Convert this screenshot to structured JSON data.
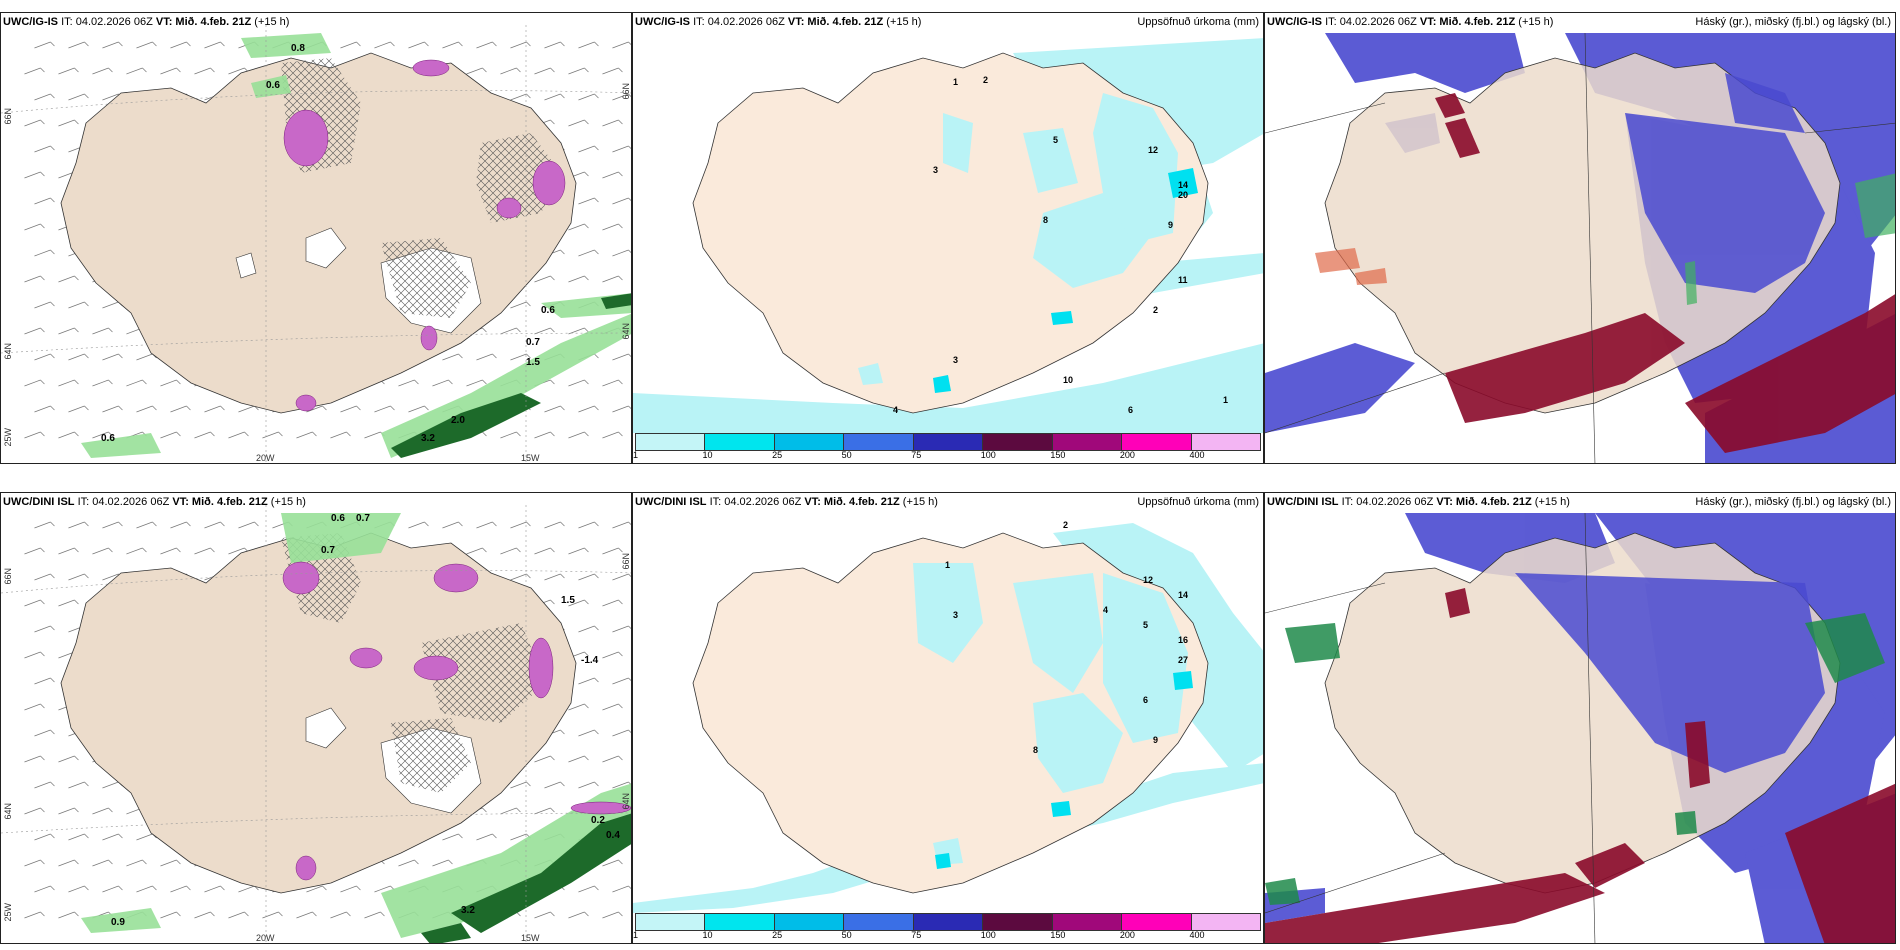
{
  "panels": [
    {
      "model": "UWC/IG-IS",
      "it_label": "IT: 04.02.2026 06Z",
      "vt_label": "VT: Mið. 4.feb. 21Z",
      "lead": "(+15 h)",
      "right_title": "",
      "axis": {
        "lat_left": "66N",
        "lat_left2": "64N",
        "lat_left3": "25W",
        "lon_a": "20W",
        "lon_b": "15W",
        "lat_right": "66N",
        "lat_right2": "64N"
      },
      "values": [
        "0.8",
        "0.6",
        "0.6",
        "1.5",
        "0.7",
        "2.0",
        "3.2",
        "0.6"
      ]
    },
    {
      "model": "UWC/IG-IS",
      "it_label": "IT: 04.02.2026 06Z",
      "vt_label": "VT: Mið. 4.feb. 21Z",
      "lead": "(+15 h)",
      "right_title": "Uppsöfnuð úrkoma (mm)",
      "legend_ticks": [
        "1",
        "10",
        "25",
        "50",
        "75",
        "100",
        "150",
        "200",
        "400"
      ],
      "values": [
        "1",
        "2",
        "3",
        "5",
        "12",
        "14",
        "20",
        "11",
        "10",
        "6",
        "1",
        "2",
        "3",
        "4",
        "8",
        "9"
      ]
    },
    {
      "model": "UWC/IG-IS",
      "it_label": "IT: 04.02.2026 06Z",
      "vt_label": "VT: Mið. 4.feb. 21Z",
      "lead": "(+15 h)",
      "right_title": "Háský (gr.), miðský (fj.bl.) og lágský (bl.)"
    },
    {
      "model": "UWC/DINI ISL",
      "it_label": "IT: 04.02.2026 06Z",
      "vt_label": "VT: Mið. 4.feb. 21Z",
      "lead": "(+15 h)",
      "right_title": "",
      "axis": {
        "lat_left": "66N",
        "lat_left2": "64N",
        "lat_left3": "25W",
        "lon_a": "20W",
        "lon_b": "15W",
        "lat_right": "66N",
        "lat_right2": "64N"
      },
      "values": [
        "0.6",
        "0.7",
        "0.7",
        "1.5",
        "-1.4",
        "0.2",
        "0.4",
        "3.2",
        "0.9"
      ]
    },
    {
      "model": "UWC/DINI ISL",
      "it_label": "IT: 04.02.2026 06Z",
      "vt_label": "VT: Mið. 4.feb. 21Z",
      "lead": "(+15 h)",
      "right_title": "Uppsöfnuð úrkoma (mm)",
      "legend_ticks": [
        "1",
        "10",
        "25",
        "50",
        "75",
        "100",
        "150",
        "200",
        "400"
      ],
      "values": [
        "1",
        "2",
        "3",
        "4",
        "5",
        "12",
        "14",
        "16",
        "27",
        "6",
        "8",
        "9"
      ]
    },
    {
      "model": "UWC/DINI ISL",
      "it_label": "IT: 04.02.2026 06Z",
      "vt_label": "VT: Mið. 4.feb. 21Z",
      "lead": "(+15 h)",
      "right_title": "Háský (gr.), miðský (fj.bl.) og lágský (bl.)"
    }
  ],
  "colors": {
    "land": "#ecdccb",
    "sea": "#ffffff",
    "precip_light": "#b9f3f6",
    "precip_scale": [
      "#c4f5f7",
      "#00e5ee",
      "#00bde8",
      "#3a6fe6",
      "#2a2ab4",
      "#5c0a3f",
      "#a0087a",
      "#ff00b8",
      "#f3b5f3"
    ],
    "cloud_high": "#4a4ad0",
    "cloud_low": "#8a0a2a",
    "cloud_mid": "#1f8a4a",
    "rain_pos": "#2a7a2a",
    "snow_pink": "#d070d0"
  }
}
